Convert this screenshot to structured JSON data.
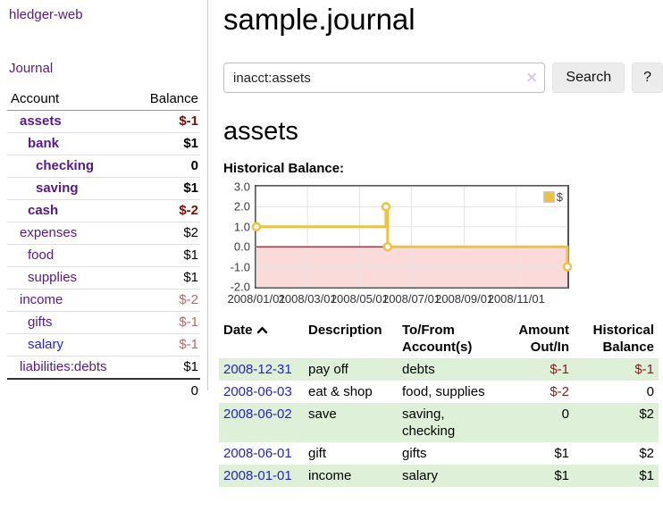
{
  "sidebar": {
    "brand": "hledger-web",
    "nav_journal": "Journal",
    "accounts_table": {
      "account_header": "Account",
      "balance_header": "Balance",
      "rows": [
        {
          "name": "assets",
          "balance": "$-1",
          "level": 0,
          "emph": true,
          "neg": "strong",
          "link": "purple"
        },
        {
          "name": "bank",
          "balance": "$1",
          "level": 1,
          "emph": true,
          "link": "purple"
        },
        {
          "name": "checking",
          "balance": "0",
          "level": 2,
          "emph": true,
          "link": "purple"
        },
        {
          "name": "saving",
          "balance": "$1",
          "level": 2,
          "emph": true,
          "link": "purple"
        },
        {
          "name": "cash",
          "balance": "$-2",
          "level": 1,
          "emph": true,
          "neg": "strong",
          "link": "purple"
        },
        {
          "name": "expenses",
          "balance": "$2",
          "level": 0,
          "link": "purple"
        },
        {
          "name": "food",
          "balance": "$1",
          "level": 1,
          "link": "purple"
        },
        {
          "name": "supplies",
          "balance": "$1",
          "level": 1,
          "link": "purple"
        },
        {
          "name": "income",
          "balance": "$-2",
          "level": 0,
          "neg": "soft",
          "link": "purple"
        },
        {
          "name": "gifts",
          "balance": "$-1",
          "level": 1,
          "neg": "soft",
          "link": "purple"
        },
        {
          "name": "salary",
          "balance": "$-1",
          "level": 1,
          "neg": "soft",
          "link": "blue"
        },
        {
          "name": "liabilities:debts",
          "balance": "$1",
          "level": 0,
          "link": "purple"
        }
      ],
      "total": "0"
    }
  },
  "header": {
    "title": "sample.journal"
  },
  "search": {
    "query": "inacct:assets",
    "clear_icon": "✕",
    "button": "Search",
    "help_button": "?"
  },
  "account_page": {
    "heading": "assets",
    "chart_label": "Historical Balance:"
  },
  "chart_data": {
    "type": "line",
    "step": true,
    "title": "Historical Balance:",
    "series": [
      {
        "name": "$",
        "color": "#edc240",
        "points": [
          [
            "2008-01-01",
            1
          ],
          [
            "2008-06-01",
            2
          ],
          [
            "2008-06-03",
            0
          ],
          [
            "2008-12-31",
            -1
          ]
        ]
      }
    ],
    "x_ticks": [
      {
        "date": "2008-01-01",
        "label": "2008/01/01"
      },
      {
        "date": "2008-03-01",
        "label": "2008/03/01"
      },
      {
        "date": "2008-05-01",
        "label": "2008/05/01"
      },
      {
        "date": "2008-07-01",
        "label": "2008/07/01"
      },
      {
        "date": "2008-09-01",
        "label": "2008/09/01"
      },
      {
        "date": "2008-11-01",
        "label": "2008/11/01"
      }
    ],
    "y_ticks": [
      3,
      2,
      1,
      0,
      -1,
      -2
    ],
    "ylim": [
      -2,
      3
    ],
    "xlim": [
      "2008-01-01",
      "2008-12-31"
    ],
    "grid": true,
    "legend_position": "top-right",
    "negative_region_fill": "#fbdada",
    "zero_line_color": "#8b0000",
    "grid_color": "#e3e3e3"
  },
  "journal_table": {
    "headers": {
      "date": "Date",
      "description": "Description",
      "accounts": "To/From\nAccount(s)",
      "amount": "Amount\nOut/In",
      "balance": "Historical\nBalance"
    },
    "rows": [
      {
        "date": "2008-12-31",
        "description": "pay off",
        "accounts": "debts",
        "amount": "$-1",
        "amount_neg": true,
        "balance": "$-1",
        "balance_neg": true,
        "shade": true
      },
      {
        "date": "2008-06-03",
        "description": "eat & shop",
        "accounts": "food, supplies",
        "amount": "$-2",
        "amount_neg": true,
        "balance": "0"
      },
      {
        "date": "2008-06-02",
        "description": "save",
        "accounts": "saving,\nchecking",
        "amount": "0",
        "balance": "$2",
        "shade": true
      },
      {
        "date": "2008-06-01",
        "description": "gift",
        "accounts": "gifts",
        "amount": "$1",
        "balance": "$2"
      },
      {
        "date": "2008-01-01",
        "description": "income",
        "accounts": "salary",
        "amount": "$1",
        "balance": "$1",
        "shade": true
      }
    ]
  }
}
